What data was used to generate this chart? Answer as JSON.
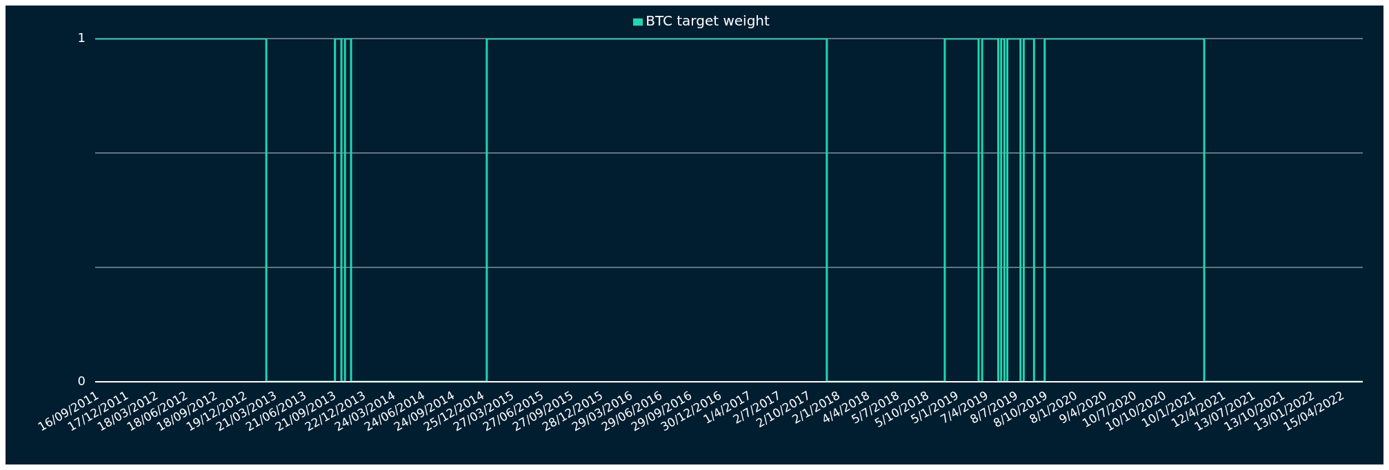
{
  "chart_data": {
    "type": "step",
    "series": [
      {
        "name": "BTC target weight",
        "color": "#1fd8b0",
        "x": [
          "2011-09-16",
          "2013-02-28",
          "2013-09-29",
          "2013-10-19",
          "2013-10-30",
          "2013-11-18",
          "2015-01-13",
          "2017-12-03",
          "2018-12-04",
          "2019-03-19",
          "2019-03-30",
          "2019-05-19",
          "2019-05-28",
          "2019-06-07",
          "2019-06-16",
          "2019-07-27",
          "2019-08-06",
          "2019-09-07",
          "2019-10-10",
          "2021-02-16",
          "2022-06-23"
        ],
        "values": [
          1,
          0,
          1,
          0,
          1,
          0,
          1,
          0,
          1,
          0,
          1,
          0,
          1,
          0,
          1,
          0,
          1,
          0,
          1,
          0,
          0
        ]
      }
    ],
    "xlim": [
      "2011-09-16",
      "2022-06-23"
    ],
    "xticks": [
      {
        "value": "2011-09-16",
        "label": "16/09/2011"
      },
      {
        "value": "2011-12-17",
        "label": "17/12/2011"
      },
      {
        "value": "2012-03-18",
        "label": "18/03/2012"
      },
      {
        "value": "2012-06-18",
        "label": "18/06/2012"
      },
      {
        "value": "2012-09-18",
        "label": "18/09/2012"
      },
      {
        "value": "2012-12-19",
        "label": "19/12/2012"
      },
      {
        "value": "2013-03-21",
        "label": "21/03/2013"
      },
      {
        "value": "2013-06-21",
        "label": "21/06/2013"
      },
      {
        "value": "2013-09-21",
        "label": "21/09/2013"
      },
      {
        "value": "2013-12-22",
        "label": "22/12/2013"
      },
      {
        "value": "2014-03-24",
        "label": "24/03/2014"
      },
      {
        "value": "2014-06-24",
        "label": "24/06/2014"
      },
      {
        "value": "2014-09-24",
        "label": "24/09/2014"
      },
      {
        "value": "2014-12-25",
        "label": "25/12/2014"
      },
      {
        "value": "2015-03-27",
        "label": "27/03/2015"
      },
      {
        "value": "2015-06-27",
        "label": "27/06/2015"
      },
      {
        "value": "2015-09-27",
        "label": "27/09/2015"
      },
      {
        "value": "2015-12-28",
        "label": "28/12/2015"
      },
      {
        "value": "2016-03-29",
        "label": "29/03/2016"
      },
      {
        "value": "2016-06-29",
        "label": "29/06/2016"
      },
      {
        "value": "2016-09-29",
        "label": "29/09/2016"
      },
      {
        "value": "2016-12-30",
        "label": "30/12/2016"
      },
      {
        "value": "2017-04-01",
        "label": "1/4/2017"
      },
      {
        "value": "2017-07-02",
        "label": "2/7/2017"
      },
      {
        "value": "2017-10-02",
        "label": "2/10/2017"
      },
      {
        "value": "2018-01-02",
        "label": "2/1/2018"
      },
      {
        "value": "2018-04-04",
        "label": "4/4/2018"
      },
      {
        "value": "2018-07-05",
        "label": "5/7/2018"
      },
      {
        "value": "2018-10-05",
        "label": "5/10/2018"
      },
      {
        "value": "2019-01-05",
        "label": "5/1/2019"
      },
      {
        "value": "2019-04-07",
        "label": "7/4/2019"
      },
      {
        "value": "2019-07-08",
        "label": "8/7/2019"
      },
      {
        "value": "2019-10-08",
        "label": "8/10/2019"
      },
      {
        "value": "2020-01-08",
        "label": "8/1/2020"
      },
      {
        "value": "2020-04-09",
        "label": "9/4/2020"
      },
      {
        "value": "2020-07-10",
        "label": "10/7/2020"
      },
      {
        "value": "2020-10-10",
        "label": "10/10/2020"
      },
      {
        "value": "2021-01-10",
        "label": "10/1/2021"
      },
      {
        "value": "2021-04-12",
        "label": "12/4/2021"
      },
      {
        "value": "2021-07-13",
        "label": "13/07/2021"
      },
      {
        "value": "2021-10-13",
        "label": "13/10/2021"
      },
      {
        "value": "2022-01-13",
        "label": "13/01/2022"
      },
      {
        "value": "2022-04-15",
        "label": "15/04/2022"
      }
    ],
    "ylim": [
      0,
      1
    ],
    "yticks": [
      0,
      {
        "value": 0.3333,
        "label": null
      },
      {
        "value": 0.6667,
        "label": null
      },
      1
    ],
    "grid": "y",
    "legend": "top",
    "marker": "none",
    "line_style": "solid"
  }
}
